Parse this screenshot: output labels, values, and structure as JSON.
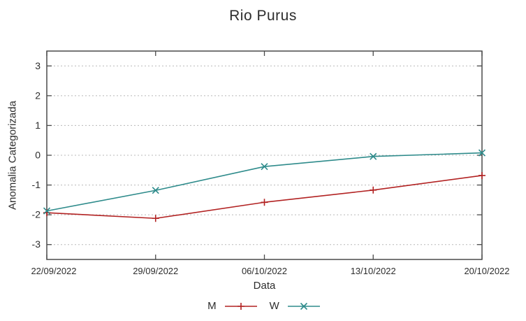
{
  "chart_data": {
    "type": "line",
    "title": "Rio Purus",
    "xlabel": "Data",
    "ylabel": "Anomalia Categorizada",
    "categories": [
      "22/09/2022",
      "29/09/2022",
      "06/10/2022",
      "13/10/2022",
      "20/10/2022"
    ],
    "ylim": [
      -3.5,
      3.5
    ],
    "yticks": [
      -3,
      -2,
      -1,
      0,
      1,
      2,
      3
    ],
    "grid": "horizontal-dotted",
    "legend_position": "bottom-center",
    "series": [
      {
        "name": "M",
        "color": "#b22222",
        "marker": "plus",
        "values": [
          -1.93,
          -2.12,
          -1.58,
          -1.17,
          -0.68
        ]
      },
      {
        "name": "W",
        "color": "#2e8b8b",
        "marker": "cross",
        "values": [
          -1.87,
          -1.18,
          -0.38,
          -0.04,
          0.08
        ]
      }
    ],
    "colors": {
      "grid": "#b8b8b8",
      "axis": "#4a4a4a",
      "text": "#2d2d2d"
    }
  }
}
